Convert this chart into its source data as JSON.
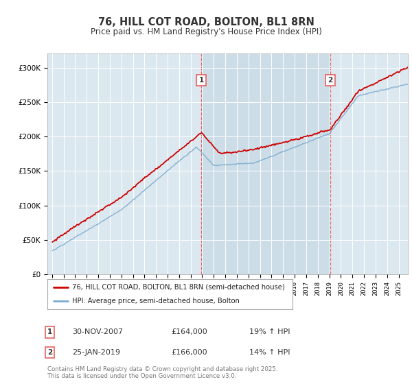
{
  "title": "76, HILL COT ROAD, BOLTON, BL1 8RN",
  "subtitle": "Price paid vs. HM Land Registry's House Price Index (HPI)",
  "legend_line1": "76, HILL COT ROAD, BOLTON, BL1 8RN (semi-detached house)",
  "legend_line2": "HPI: Average price, semi-detached house, Bolton",
  "purchase1_date": "30-NOV-2007",
  "purchase1_price": 164000,
  "purchase1_hpi": "19% ↑ HPI",
  "purchase2_date": "25-JAN-2019",
  "purchase2_price": 166000,
  "purchase2_hpi": "14% ↑ HPI",
  "footer": "Contains HM Land Registry data © Crown copyright and database right 2025.\nThis data is licensed under the Open Government Licence v3.0.",
  "red_color": "#cc0000",
  "blue_color": "#7aabcf",
  "vline_color": "#e86060",
  "bg_color": "#dce8f0",
  "shade_color": "#ccdde8",
  "ylim_min": 0,
  "ylim_max": 320000,
  "title_color": "#333333"
}
